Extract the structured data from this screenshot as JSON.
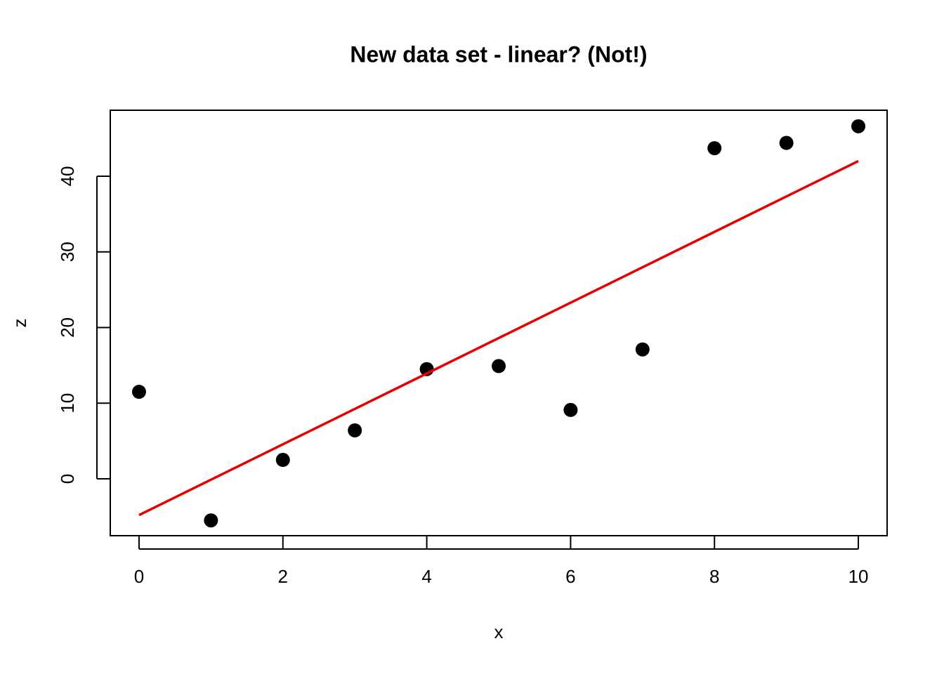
{
  "chart_data": {
    "type": "scatter",
    "title": "New data set - linear? (Not!)",
    "xlabel": "x",
    "ylabel": "z",
    "series": [
      {
        "kind": "points",
        "color": "#000000",
        "x": [
          0,
          1,
          2,
          3,
          4,
          5,
          6,
          7,
          8,
          9,
          10
        ],
        "values": [
          11.5,
          -5.5,
          2.5,
          6.4,
          14.5,
          14.9,
          9.1,
          17.1,
          43.7,
          44.4,
          46.6
        ]
      },
      {
        "kind": "line",
        "color": "#e60000",
        "x": [
          0,
          10
        ],
        "values": [
          -4.8,
          42.0
        ]
      }
    ],
    "xlim": [
      -0.4,
      10.4
    ],
    "ylim": [
      -7.52,
      48.72
    ],
    "xticks": [
      0,
      2,
      4,
      6,
      8,
      10
    ],
    "yticks": [
      0,
      10,
      20,
      30,
      40
    ]
  }
}
